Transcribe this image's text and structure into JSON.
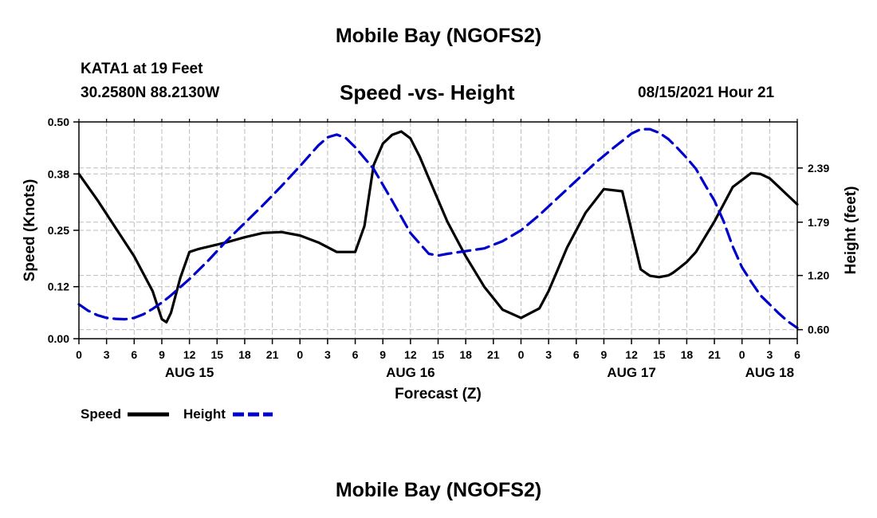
{
  "header": {
    "title": "Mobile Bay (NGOFS2)",
    "station": "KATA1 at 19 Feet",
    "coords": "30.2580N  88.2130W",
    "subtitle": "Speed -vs- Height",
    "datetime": "08/15/2021 Hour 21"
  },
  "footer": {
    "title": "Mobile Bay (NGOFS2)"
  },
  "chart_data": {
    "type": "line",
    "xlabel": "Forecast (Z)",
    "ylabel": "Speed (Knots)",
    "y2label": "Height (feet)",
    "x_unit": "forecast hours from Aug 15 00Z",
    "xlim": [
      0,
      78
    ],
    "ylim": [
      0,
      0.5
    ],
    "y2lim": [
      0.5,
      2.9
    ],
    "x_tick_values": [
      0,
      3,
      6,
      9,
      12,
      15,
      18,
      21,
      24,
      27,
      30,
      33,
      36,
      39,
      42,
      45,
      48,
      51,
      54,
      57,
      60,
      63,
      66,
      69,
      72,
      75,
      78
    ],
    "x_tick_labels": [
      "0",
      "3",
      "6",
      "9",
      "12",
      "15",
      "18",
      "21",
      "0",
      "3",
      "6",
      "9",
      "12",
      "15",
      "18",
      "21",
      "0",
      "3",
      "6",
      "9",
      "12",
      "15",
      "18",
      "21",
      "0",
      "3",
      "6"
    ],
    "date_labels": [
      {
        "x": 12,
        "label": "AUG 15"
      },
      {
        "x": 36,
        "label": "AUG 16"
      },
      {
        "x": 60,
        "label": "AUG 17"
      },
      {
        "x": 75,
        "label": "AUG 18"
      }
    ],
    "y_ticks": [
      0.0,
      0.12,
      0.25,
      0.38,
      0.5
    ],
    "y_tick_labels": [
      "0.00",
      "0.12",
      "0.25",
      "0.38",
      "0.50"
    ],
    "y2_ticks": [
      0.6,
      1.2,
      1.79,
      2.39
    ],
    "y2_tick_labels": [
      "0.60",
      "1.20",
      "1.79",
      "2.39"
    ],
    "grid": true,
    "legend": "bottom-left",
    "series": [
      {
        "name": "Speed",
        "axis": "left",
        "color": "#000000",
        "style": "solid",
        "x": [
          0,
          2,
          4,
          6,
          8,
          9,
          9.5,
          10,
          11,
          12,
          13,
          14,
          16,
          18,
          20,
          22,
          24,
          26,
          28,
          30,
          31,
          32,
          33,
          34,
          35,
          36,
          37,
          38,
          40,
          42,
          44,
          46,
          48,
          50,
          51,
          52,
          53,
          55,
          57,
          59,
          61,
          62,
          63,
          64,
          64.5,
          65,
          66,
          67,
          69,
          71,
          73,
          74,
          75,
          76,
          77,
          78
        ],
        "y": [
          0.38,
          0.32,
          0.255,
          0.19,
          0.11,
          0.045,
          0.038,
          0.06,
          0.14,
          0.2,
          0.207,
          0.212,
          0.222,
          0.234,
          0.244,
          0.246,
          0.238,
          0.222,
          0.2,
          0.2,
          0.26,
          0.4,
          0.45,
          0.47,
          0.478,
          0.462,
          0.42,
          0.37,
          0.27,
          0.19,
          0.12,
          0.067,
          0.048,
          0.07,
          0.11,
          0.16,
          0.21,
          0.29,
          0.345,
          0.34,
          0.16,
          0.145,
          0.142,
          0.146,
          0.152,
          0.16,
          0.177,
          0.2,
          0.27,
          0.35,
          0.382,
          0.38,
          0.37,
          0.35,
          0.33,
          0.31
        ]
      },
      {
        "name": "Height",
        "axis": "right",
        "color": "#0000CC",
        "style": "dashed",
        "x": [
          0,
          1,
          2,
          3,
          4,
          5,
          6,
          7,
          8,
          9,
          10,
          12,
          14,
          16,
          18,
          20,
          22,
          24,
          26,
          27,
          28,
          29,
          30,
          32,
          34,
          36,
          38,
          39,
          40,
          42,
          44,
          46,
          48,
          50,
          52,
          54,
          56,
          58,
          60,
          61,
          62,
          63,
          64,
          65,
          66,
          67,
          68,
          69,
          70,
          71,
          72,
          73,
          74,
          75,
          76,
          77,
          78
        ],
        "y": [
          0.88,
          0.81,
          0.76,
          0.73,
          0.72,
          0.715,
          0.73,
          0.77,
          0.83,
          0.9,
          0.98,
          1.16,
          1.36,
          1.58,
          1.78,
          1.98,
          2.19,
          2.41,
          2.64,
          2.73,
          2.76,
          2.72,
          2.62,
          2.38,
          2.03,
          1.67,
          1.44,
          1.42,
          1.44,
          1.47,
          1.5,
          1.58,
          1.7,
          1.87,
          2.06,
          2.25,
          2.44,
          2.61,
          2.77,
          2.82,
          2.82,
          2.78,
          2.71,
          2.61,
          2.5,
          2.38,
          2.2,
          2.03,
          1.8,
          1.52,
          1.29,
          1.13,
          0.98,
          0.88,
          0.78,
          0.69,
          0.62
        ]
      }
    ]
  }
}
